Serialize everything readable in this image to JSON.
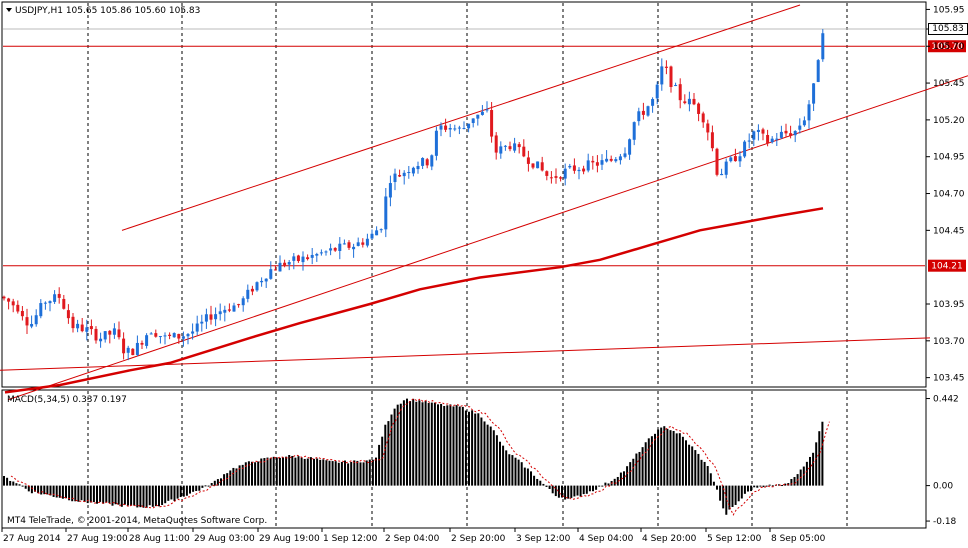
{
  "chart_info": {
    "symbol_line": "USDJPY,H1  105.65 105.86 105.60 105.83",
    "current_price": "105.83",
    "indicator_line": "MACD(5,34,5) 0.337 0.197",
    "copyright": "MT4 TeleTrade, © 2001-2014, MetaQuotes Software Corp."
  },
  "colors": {
    "bull": "#1e6fd8",
    "bear": "#e0191e",
    "line": "#d40000",
    "grid": "#000000",
    "histogram": "#000000"
  },
  "price_axis": {
    "ticks": [
      "105.95",
      "105.70",
      "105.45",
      "105.20",
      "104.95",
      "104.70",
      "104.45",
      "104.21",
      "103.95",
      "103.70",
      "103.45"
    ],
    "min": 103.4,
    "max": 105.98
  },
  "hlines": [
    {
      "price": 105.7,
      "label": "105.70"
    },
    {
      "price": 104.21,
      "label": "104.21"
    }
  ],
  "macd_axis": {
    "ticks": [
      "0.442",
      "0.00",
      "-0.18"
    ],
    "min": -0.2,
    "max": 0.46
  },
  "time_labels": [
    "27 Aug 2014",
    "27 Aug 19:00",
    "28 Aug 11:00",
    "29 Aug 03:00",
    "29 Aug 19:00",
    "1 Sep 12:00",
    "2 Sep 04:00",
    "2 Sep 20:00",
    "3 Sep 12:00",
    "4 Sep 04:00",
    "4 Sep 20:00",
    "5 Sep 12:00",
    "8 Sep 05:00"
  ],
  "chart_data": {
    "type": "candlestick",
    "title": "USDJPY,H1",
    "price_anchors": [
      [
        0,
        104.0
      ],
      [
        20,
        103.92
      ],
      [
        30,
        103.8
      ],
      [
        45,
        103.97
      ],
      [
        60,
        104.0
      ],
      [
        72,
        103.8
      ],
      [
        85,
        103.78
      ],
      [
        100,
        103.72
      ],
      [
        115,
        103.76
      ],
      [
        125,
        103.62
      ],
      [
        135,
        103.64
      ],
      [
        150,
        103.78
      ],
      [
        165,
        103.72
      ],
      [
        180,
        103.73
      ],
      [
        195,
        103.77
      ],
      [
        210,
        103.87
      ],
      [
        225,
        103.92
      ],
      [
        240,
        103.95
      ],
      [
        255,
        104.08
      ],
      [
        270,
        104.18
      ],
      [
        285,
        104.23
      ],
      [
        300,
        104.25
      ],
      [
        315,
        104.28
      ],
      [
        325,
        104.3
      ],
      [
        340,
        104.33
      ],
      [
        355,
        104.35
      ],
      [
        370,
        104.4
      ],
      [
        383,
        104.5
      ],
      [
        388,
        104.8
      ],
      [
        400,
        104.83
      ],
      [
        415,
        104.9
      ],
      [
        430,
        104.92
      ],
      [
        438,
        105.15
      ],
      [
        450,
        105.15
      ],
      [
        462,
        105.13
      ],
      [
        472,
        105.22
      ],
      [
        487,
        105.25
      ],
      [
        495,
        104.98
      ],
      [
        510,
        105.03
      ],
      [
        520,
        104.98
      ],
      [
        535,
        104.9
      ],
      [
        550,
        104.8
      ],
      [
        565,
        104.85
      ],
      [
        580,
        104.88
      ],
      [
        595,
        104.9
      ],
      [
        610,
        104.92
      ],
      [
        625,
        105.0
      ],
      [
        635,
        105.2
      ],
      [
        645,
        105.27
      ],
      [
        655,
        105.35
      ],
      [
        663,
        105.58
      ],
      [
        670,
        105.47
      ],
      [
        680,
        105.35
      ],
      [
        695,
        105.3
      ],
      [
        705,
        105.2
      ],
      [
        712,
        105.02
      ],
      [
        718,
        104.82
      ],
      [
        728,
        104.9
      ],
      [
        740,
        104.98
      ],
      [
        755,
        105.12
      ],
      [
        768,
        105.05
      ],
      [
        780,
        105.1
      ],
      [
        795,
        105.12
      ],
      [
        805,
        105.22
      ],
      [
        815,
        105.45
      ],
      [
        818,
        105.62
      ],
      [
        823,
        105.83
      ]
    ],
    "ma_slow": [
      [
        5,
        103.35
      ],
      [
        60,
        103.4
      ],
      [
        130,
        103.5
      ],
      [
        170,
        103.55
      ],
      [
        250,
        103.72
      ],
      [
        300,
        103.82
      ],
      [
        370,
        103.95
      ],
      [
        420,
        104.05
      ],
      [
        480,
        104.13
      ],
      [
        560,
        104.2
      ],
      [
        600,
        104.25
      ],
      [
        650,
        104.35
      ],
      [
        700,
        104.45
      ],
      [
        740,
        104.5
      ],
      [
        780,
        104.55
      ],
      [
        823,
        104.6
      ]
    ],
    "trend_lines": [
      {
        "p1": [
          122,
          104.45
        ],
        "p2": [
          800,
          105.98
        ]
      },
      {
        "p1": [
          8,
          103.3
        ],
        "p2": [
          968,
          105.5
        ]
      },
      {
        "p1": [
          0,
          103.5
        ],
        "p2": [
          930,
          103.72
        ]
      }
    ],
    "macd_anchors": [
      [
        0,
        0.05
      ],
      [
        15,
        0.02
      ],
      [
        30,
        -0.03
      ],
      [
        60,
        -0.06
      ],
      [
        80,
        -0.08
      ],
      [
        100,
        -0.09
      ],
      [
        120,
        -0.1
      ],
      [
        140,
        -0.11
      ],
      [
        160,
        -0.1
      ],
      [
        180,
        -0.06
      ],
      [
        200,
        -0.02
      ],
      [
        215,
        0.02
      ],
      [
        230,
        0.08
      ],
      [
        250,
        0.12
      ],
      [
        270,
        0.14
      ],
      [
        290,
        0.15
      ],
      [
        310,
        0.14
      ],
      [
        330,
        0.12
      ],
      [
        350,
        0.12
      ],
      [
        375,
        0.13
      ],
      [
        385,
        0.3
      ],
      [
        395,
        0.4
      ],
      [
        405,
        0.44
      ],
      [
        420,
        0.43
      ],
      [
        440,
        0.41
      ],
      [
        460,
        0.4
      ],
      [
        480,
        0.36
      ],
      [
        495,
        0.27
      ],
      [
        505,
        0.18
      ],
      [
        520,
        0.12
      ],
      [
        535,
        0.05
      ],
      [
        545,
        0.0
      ],
      [
        555,
        -0.05
      ],
      [
        570,
        -0.07
      ],
      [
        590,
        -0.03
      ],
      [
        610,
        0.02
      ],
      [
        625,
        0.08
      ],
      [
        640,
        0.18
      ],
      [
        655,
        0.27
      ],
      [
        665,
        0.3
      ],
      [
        680,
        0.26
      ],
      [
        695,
        0.18
      ],
      [
        710,
        0.08
      ],
      [
        718,
        -0.04
      ],
      [
        725,
        -0.15
      ],
      [
        735,
        -0.1
      ],
      [
        748,
        -0.03
      ],
      [
        760,
        0.0
      ],
      [
        775,
        0.0
      ],
      [
        790,
        0.02
      ],
      [
        800,
        0.08
      ],
      [
        812,
        0.15
      ],
      [
        822,
        0.33
      ]
    ],
    "macd_signal_offset": 7,
    "bar_step": 4.6
  }
}
